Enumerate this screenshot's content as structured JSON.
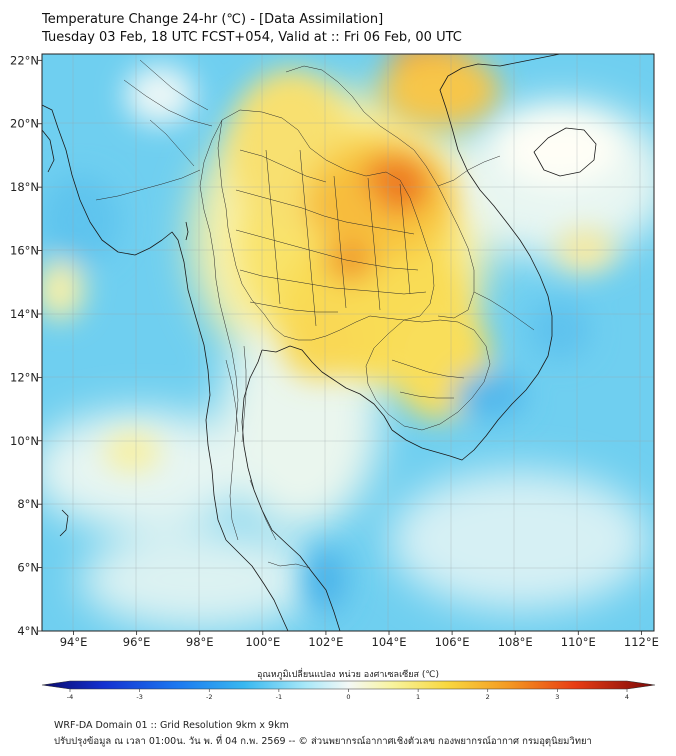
{
  "title": {
    "line1": "Temperature Change 24-hr (℃) - [Data Assimilation]",
    "line2": "Tuesday 03 Feb, 18 UTC FCST+054, Valid at :: Fri 06 Feb, 00 UTC"
  },
  "map": {
    "lon_ticks": [
      {
        "value": 94,
        "label": "94°E"
      },
      {
        "value": 96,
        "label": "96°E"
      },
      {
        "value": 98,
        "label": "98°E"
      },
      {
        "value": 100,
        "label": "100°E"
      },
      {
        "value": 102,
        "label": "102°E"
      },
      {
        "value": 104,
        "label": "104°E"
      },
      {
        "value": 106,
        "label": "106°E"
      },
      {
        "value": 108,
        "label": "108°E"
      },
      {
        "value": 110,
        "label": "110°E"
      },
      {
        "value": 112,
        "label": "112°E"
      }
    ],
    "lat_ticks": [
      {
        "value": 22,
        "label": "22°N"
      },
      {
        "value": 20,
        "label": "20°N"
      },
      {
        "value": 18,
        "label": "18°N"
      },
      {
        "value": 16,
        "label": "16°N"
      },
      {
        "value": 14,
        "label": "14°N"
      },
      {
        "value": 12,
        "label": "12°N"
      },
      {
        "value": 10,
        "label": "10°N"
      },
      {
        "value": 8,
        "label": "8°N"
      },
      {
        "value": 6,
        "label": "6°N"
      },
      {
        "value": 4,
        "label": "4°N"
      }
    ]
  },
  "colorbar": {
    "label": "อุณหภูมิเปลี่ยนแปลง หน่วย องศาเซลเซียส (℃)",
    "ticks": [
      "-4",
      "-3",
      "-2",
      "-1",
      "0",
      "1",
      "2",
      "3",
      "4"
    ],
    "range": [
      -4,
      4
    ]
  },
  "footer": {
    "line1": "WRF-DA Domain 01 :: Grid Resolution 9km x 9km",
    "line2": "ปรับปรุงข้อมูล ณ เวลา 01:00น. วัน พ. ที่ 04 ก.พ. 2569 -- © ส่วนพยากรณ์อากาศเชิงตัวเลข กองพยากรณ์อากาศ กรมอุตุนิยมวิทยา"
  },
  "colors": {
    "cold": "#5fc8ee",
    "neutral": "#f4f8e8",
    "warm": "#f9d23a",
    "hot": "#ec6a1c"
  }
}
